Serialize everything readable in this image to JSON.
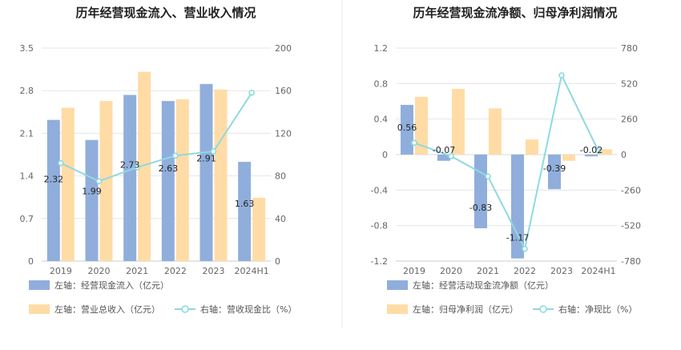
{
  "colors": {
    "flow": "#90aedc",
    "rev": "#ffdca6",
    "ratio": "#8fd9df"
  },
  "chart_data": [
    {
      "type": "bar",
      "title": "历年经营现金流入、营业收入情况",
      "categories": [
        "2019",
        "2020",
        "2021",
        "2022",
        "2023",
        "2024H1"
      ],
      "left_axis": {
        "ticks": [
          "0",
          "0.7",
          "1.4",
          "2.1",
          "2.8",
          "3.5"
        ],
        "min": 0,
        "max": 3.5
      },
      "right_axis": {
        "ticks": [
          "0",
          "40",
          "80",
          "120",
          "160",
          "200"
        ],
        "min": 0,
        "max": 200
      },
      "series": [
        {
          "name": "左轴：经营现金流入（亿元）",
          "axis": "left",
          "kind": "bar",
          "values": [
            2.32,
            1.99,
            2.73,
            2.63,
            2.91,
            1.63
          ],
          "labels": [
            "2.32",
            "1.99",
            "2.73",
            "2.63",
            "2.91",
            "1.63"
          ]
        },
        {
          "name": "左轴：营业总收入（亿元）",
          "axis": "left",
          "kind": "bar",
          "values": [
            2.52,
            2.63,
            3.11,
            2.66,
            2.82,
            1.04
          ]
        },
        {
          "name": "右轴：营收现金比（%）",
          "axis": "right",
          "kind": "line",
          "values": [
            92,
            75,
            88,
            99,
            103,
            158
          ]
        }
      ],
      "legend": [
        "左轴：经营现金流入（亿元）",
        "左轴：营业总收入（亿元）",
        "右轴：营收现金比（%）"
      ]
    },
    {
      "type": "bar",
      "title": "历年经营现金流净额、归母净利润情况",
      "categories": [
        "2019",
        "2020",
        "2021",
        "2022",
        "2023",
        "2024H1"
      ],
      "left_axis": {
        "ticks": [
          "-1.2",
          "-0.8",
          "-0.4",
          "0",
          "0.4",
          "0.8",
          "1.2"
        ],
        "min": -1.2,
        "max": 1.2
      },
      "right_axis": {
        "ticks": [
          "-780",
          "-520",
          "-260",
          "0",
          "260",
          "520",
          "780"
        ],
        "min": -780,
        "max": 780
      },
      "series": [
        {
          "name": "左轴：经营活动现金流净额（亿元）",
          "axis": "left",
          "kind": "bar",
          "values": [
            0.56,
            -0.07,
            -0.83,
            -1.17,
            -0.39,
            -0.02
          ],
          "labels": [
            "0.56",
            "-0.07",
            "-0.83",
            "-1.17",
            "-0.39",
            "-0.02"
          ]
        },
        {
          "name": "左轴：归母净利润（亿元）",
          "axis": "left",
          "kind": "bar",
          "values": [
            0.65,
            0.74,
            0.52,
            0.17,
            -0.07,
            0.06
          ]
        },
        {
          "name": "右轴：净现比（%）",
          "axis": "right",
          "kind": "line",
          "values": [
            86,
            -12,
            -160,
            -690,
            580,
            25
          ]
        }
      ],
      "legend": [
        "左轴：经营活动现金流净额（亿元）",
        "左轴：归母净利润（亿元）",
        "右轴：净现比（%）"
      ]
    }
  ]
}
